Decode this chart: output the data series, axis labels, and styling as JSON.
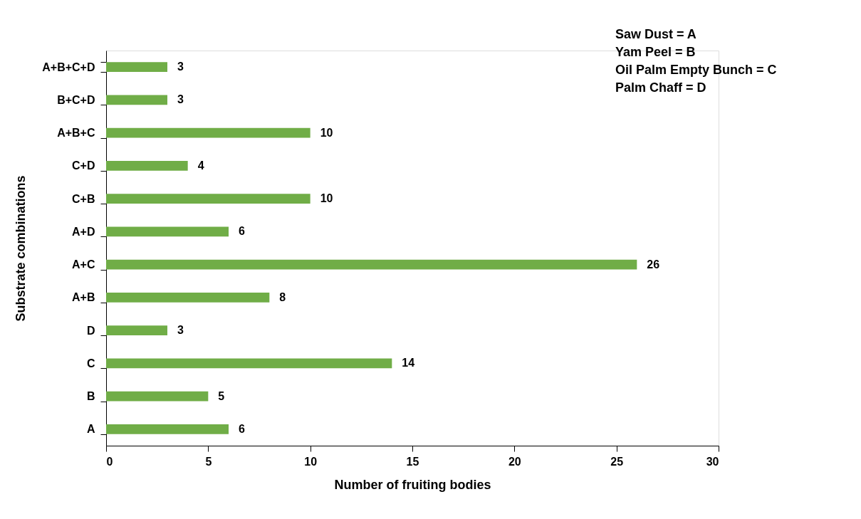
{
  "chart_data": {
    "type": "bar",
    "orientation": "horizontal",
    "categories": [
      "A+B+C+D",
      "B+C+D",
      "A+B+C",
      "C+D",
      "C+B",
      "A+D",
      "A+C",
      "A+B",
      "D",
      "C",
      "B",
      "A"
    ],
    "values": [
      3,
      3,
      10,
      4,
      10,
      6,
      26,
      8,
      3,
      14,
      5,
      6
    ],
    "color": "#70ad47",
    "xlim": [
      0,
      30
    ],
    "xticks": [
      0,
      5,
      10,
      15,
      20,
      25,
      30
    ],
    "xlabel": "Number of fruiting bodies",
    "ylabel": "Substrate combinations",
    "data_labels": true,
    "annotations": [
      "Saw Dust = A",
      "Yam Peel = B",
      "Oil Palm Empty Bunch = C",
      "Palm Chaff = D"
    ]
  }
}
